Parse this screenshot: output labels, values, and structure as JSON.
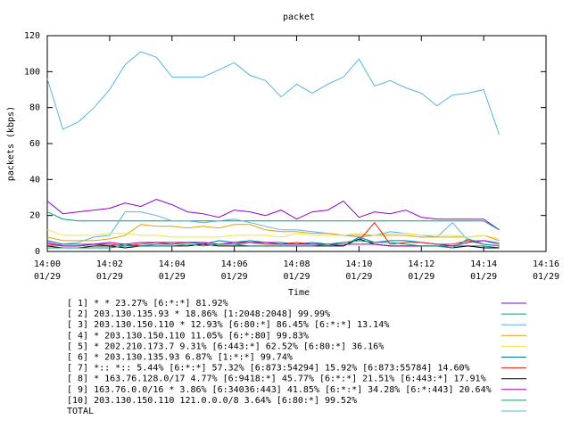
{
  "chart_data": {
    "type": "line",
    "title": "packet",
    "y_label": "packets (kbps)",
    "x_label": "Time",
    "x": [
      0,
      0.5,
      1,
      1.5,
      2,
      2.5,
      3,
      3.5,
      4,
      4.5,
      5,
      5.5,
      6,
      6.5,
      7,
      7.5,
      8,
      8.5,
      9,
      9.5,
      10,
      10.5,
      11,
      11.5,
      12,
      12.5,
      13,
      13.5,
      14,
      14.5
    ],
    "xlim": [
      0,
      16
    ],
    "xticks": [
      {
        "value": 0,
        "label": "14:00"
      },
      {
        "value": 2,
        "label": "14:02"
      },
      {
        "value": 4,
        "label": "14:04"
      },
      {
        "value": 6,
        "label": "14:06"
      },
      {
        "value": 8,
        "label": "14:08"
      },
      {
        "value": 10,
        "label": "14:10"
      },
      {
        "value": 12,
        "label": "14:12"
      },
      {
        "value": 14,
        "label": "14:14"
      },
      {
        "value": 16,
        "label": "14:16"
      }
    ],
    "xtick_sublabels": [
      "01/29",
      "01/29",
      "01/29",
      "01/29",
      "01/29",
      "01/29",
      "01/29",
      "01/29",
      "01/29"
    ],
    "ylim": [
      0,
      120
    ],
    "yticks": [
      0,
      20,
      40,
      60,
      80,
      100,
      120
    ],
    "grid": false,
    "series": [
      {
        "name": "[ 1] * * 23.27%  [6:*:*] 81.92%",
        "color": "#9400d3",
        "values": [
          28,
          21,
          22,
          23,
          24,
          27,
          25,
          29,
          26,
          22,
          21,
          19,
          23,
          22,
          20,
          23,
          18,
          22,
          23,
          28,
          19,
          22,
          21,
          23,
          19,
          18,
          18,
          18,
          18,
          12
        ]
      },
      {
        "name": "[ 2] 203.130.135.93 * 18.86%  [1:2048:2048] 99.99%",
        "color": "#009e73",
        "values": [
          22,
          18,
          17,
          17,
          17,
          17,
          17,
          17,
          17,
          17,
          17,
          17,
          17,
          17,
          17,
          17,
          17,
          17,
          17,
          17,
          17,
          17,
          17,
          17,
          17,
          17,
          17,
          17,
          17,
          12
        ]
      },
      {
        "name": "[ 3] 203.130.150.110 * 12.93%  [6:80:*] 86.45% [6:*:*] 13.14%",
        "color": "#56b4e9",
        "values": [
          3,
          4,
          5,
          8,
          9,
          22,
          22,
          20,
          17,
          17,
          16,
          17,
          18,
          16,
          14,
          12,
          12,
          11,
          10,
          9,
          8,
          9,
          11,
          10,
          9,
          8,
          16,
          6,
          6,
          5
        ]
      },
      {
        "name": "[ 4] * 203.130.150.110 11.05%  [6:*:80] 99.83%",
        "color": "#e69f00",
        "values": [
          8,
          6,
          6,
          6,
          7,
          9,
          15,
          14,
          14,
          13,
          14,
          13,
          15,
          15,
          12,
          11,
          11,
          10,
          10,
          9,
          9,
          9,
          9,
          9,
          8,
          8,
          8,
          8,
          9,
          6
        ]
      },
      {
        "name": "[ 5] * 202.210.173.7 9.31%  [6:443:*] 62.52% [6:80:*] 36.16%",
        "color": "#f0e442",
        "values": [
          12,
          9,
          9,
          9,
          10,
          10,
          9,
          9,
          8,
          8,
          8,
          8,
          9,
          9,
          9,
          8,
          10,
          9,
          9,
          9,
          10,
          9,
          10,
          10,
          9,
          9,
          9,
          8,
          9,
          7
        ]
      },
      {
        "name": "[ 6] * 203.130.135.93 6.87%  [1:*:*] 99.74%",
        "color": "#0072b2",
        "values": [
          6,
          4,
          4,
          4,
          3,
          4,
          3,
          4,
          4,
          5,
          4,
          6,
          5,
          6,
          5,
          5,
          4,
          5,
          4,
          3,
          8,
          5,
          6,
          6,
          5,
          4,
          3,
          3,
          3,
          2
        ]
      },
      {
        "name": "[ 7] *:: *:: 5.44%  [6:*:*] 57.32% [6:873:54294] 15.92% [6:873:55784] 14.60%",
        "color": "#e51e10",
        "values": [
          4,
          3,
          3,
          4,
          4,
          3,
          4,
          5,
          4,
          5,
          5,
          4,
          4,
          5,
          4,
          4,
          5,
          4,
          4,
          5,
          6,
          16,
          4,
          5,
          5,
          4,
          4,
          6,
          4,
          3
        ]
      },
      {
        "name": "[ 8] * 163.76.128.0/17 4.77%  [6:9418:*] 45.77% [6:*:*] 21.51% [6:443:*] 17.91%",
        "color": "#000000",
        "values": [
          3,
          2,
          2,
          3,
          3,
          2,
          3,
          3,
          3,
          3,
          4,
          3,
          3,
          3,
          3,
          3,
          3,
          3,
          3,
          3,
          7,
          4,
          3,
          3,
          3,
          3,
          2,
          3,
          2,
          2
        ]
      },
      {
        "name": "[ 9] 163.76.0.0/16 * 3.86%  [6:34036:443] 41.85% [6:*:*] 34.28% [6:*:443] 20.64%",
        "color": "#9400d3",
        "values": [
          5,
          3,
          3,
          4,
          5,
          4,
          5,
          5,
          5,
          5,
          5,
          4,
          5,
          5,
          5,
          4,
          4,
          4,
          4,
          4,
          4,
          4,
          3,
          3,
          3,
          3,
          3,
          5,
          6,
          4
        ]
      },
      {
        "name": "[10] 203.130.150.110 121.0.0.0/8 3.64%  [6:80:*] 99.52%",
        "color": "#009e73",
        "values": [
          2,
          2,
          2,
          2,
          2,
          3,
          3,
          3,
          3,
          4,
          3,
          4,
          4,
          3,
          3,
          3,
          3,
          3,
          4,
          5,
          6,
          5,
          5,
          4,
          3,
          3,
          2,
          7,
          4,
          3
        ]
      },
      {
        "name": "TOTAL",
        "color": "#56b4e9",
        "values": [
          96,
          68,
          72,
          80,
          90,
          104,
          111,
          108,
          97,
          97,
          97,
          101,
          105,
          98,
          95,
          86,
          93,
          88,
          93,
          97,
          107,
          92,
          95,
          91,
          88,
          81,
          87,
          88,
          90,
          65
        ]
      }
    ]
  }
}
